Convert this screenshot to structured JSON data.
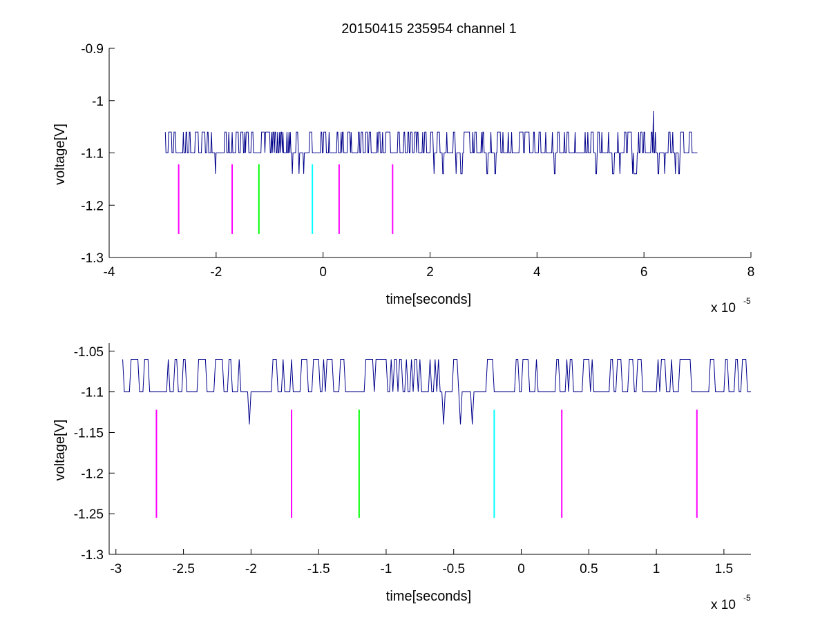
{
  "figure": {
    "title": "20150415 235954 channel 1",
    "background": "#ffffff",
    "trace_color": "#00008b",
    "marker_colors": {
      "magenta": "#ff00ff",
      "green": "#00ff00",
      "cyan": "#00ffff"
    }
  },
  "chart_data": [
    {
      "type": "line",
      "title": "20150415 235954 channel 1",
      "xlabel": "time[seconds]",
      "ylabel": "voltage[V]",
      "x_exponent_label": "x 10",
      "x_exponent": "-5",
      "xlim": [
        -4,
        8
      ],
      "ylim": [
        -1.3,
        -0.9
      ],
      "xticks": [
        -4,
        -2,
        0,
        2,
        4,
        6,
        8
      ],
      "xtick_labels": [
        "-4",
        "-2",
        "0",
        "2",
        "4",
        "6",
        "8"
      ],
      "yticks": [
        -1.3,
        -1.2,
        -1.1,
        -1,
        -0.9
      ],
      "ytick_labels": [
        "-1.3",
        "-1.2",
        "-1.1",
        "-1",
        "-0.9"
      ],
      "grid": false,
      "series": [
        {
          "color": "#00008b",
          "x_range": [
            -2.95,
            7.0
          ],
          "dt": 0.0125,
          "levels": [
            -1.06,
            -1.1,
            -1.14
          ],
          "spike": {
            "x": 6.18,
            "y": -1.02
          }
        }
      ],
      "markers": [
        {
          "x": -2.7,
          "y_top": -1.122,
          "y_bottom": -1.255,
          "color": "magenta"
        },
        {
          "x": -1.7,
          "y_top": -1.122,
          "y_bottom": -1.255,
          "color": "magenta"
        },
        {
          "x": -1.2,
          "y_top": -1.122,
          "y_bottom": -1.255,
          "color": "green"
        },
        {
          "x": -0.2,
          "y_top": -1.122,
          "y_bottom": -1.255,
          "color": "cyan"
        },
        {
          "x": 0.3,
          "y_top": -1.122,
          "y_bottom": -1.255,
          "color": "magenta"
        },
        {
          "x": 1.3,
          "y_top": -1.122,
          "y_bottom": -1.255,
          "color": "magenta"
        }
      ]
    },
    {
      "type": "line",
      "xlabel": "time[seconds]",
      "ylabel": "voltage[V]",
      "x_exponent_label": "x 10",
      "x_exponent": "-5",
      "xlim": [
        -3.05,
        1.7
      ],
      "ylim": [
        -1.3,
        -1.04
      ],
      "xticks": [
        -3,
        -2.5,
        -2,
        -1.5,
        -1,
        -0.5,
        0,
        0.5,
        1,
        1.5
      ],
      "xtick_labels": [
        "-3",
        "-2.5",
        "-2",
        "-1.5",
        "-1",
        "-0.5",
        "0",
        "0.5",
        "1",
        "1.5"
      ],
      "yticks": [
        -1.3,
        -1.25,
        -1.2,
        -1.15,
        -1.1,
        -1.05
      ],
      "ytick_labels": [
        "-1.3",
        "-1.25",
        "-1.2",
        "-1.15",
        "-1.1",
        "-1.05"
      ],
      "grid": false,
      "series": [
        {
          "color": "#00008b",
          "x_range": [
            -2.95,
            1.7
          ],
          "dt": 0.0125,
          "levels": [
            -1.06,
            -1.1,
            -1.14
          ]
        }
      ],
      "markers": [
        {
          "x": -2.7,
          "y_top": -1.122,
          "y_bottom": -1.255,
          "color": "magenta"
        },
        {
          "x": -1.7,
          "y_top": -1.122,
          "y_bottom": -1.255,
          "color": "magenta"
        },
        {
          "x": -1.2,
          "y_top": -1.122,
          "y_bottom": -1.255,
          "color": "green"
        },
        {
          "x": -0.2,
          "y_top": -1.122,
          "y_bottom": -1.255,
          "color": "cyan"
        },
        {
          "x": 0.3,
          "y_top": -1.122,
          "y_bottom": -1.255,
          "color": "magenta"
        },
        {
          "x": 1.3,
          "y_top": -1.122,
          "y_bottom": -1.255,
          "color": "magenta"
        }
      ]
    }
  ]
}
